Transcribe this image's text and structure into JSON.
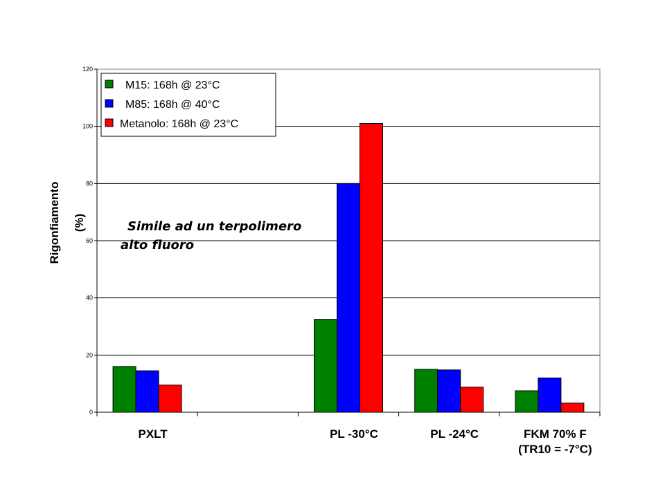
{
  "chart_data": {
    "type": "bar",
    "title": "",
    "ylabel": [
      "Rigonfiamento",
      "(%)"
    ],
    "xlabel": "",
    "ylim": [
      0,
      120
    ],
    "yticks": [
      0,
      20,
      40,
      60,
      80,
      100,
      120
    ],
    "grid": true,
    "legend_position": "top-left",
    "categories": [
      [
        "PXLT"
      ],
      [
        ""
      ],
      [
        "PL -30°C"
      ],
      [
        "PL -24°C"
      ],
      [
        "FKM 70% F",
        "(TR10 = -7°C)"
      ]
    ],
    "series": [
      {
        "name": "M15: 168h @ 23°C",
        "color": "#008000",
        "values": [
          16,
          null,
          32.5,
          15,
          7.5
        ]
      },
      {
        "name": "M85: 168h @ 40°C",
        "color": "#0000ff",
        "values": [
          14.5,
          null,
          80,
          14.8,
          12
        ]
      },
      {
        "name": "Metanolo: 168h @ 23°C",
        "color": "#ff0000",
        "values": [
          9.5,
          null,
          101,
          8.8,
          3.2
        ]
      }
    ],
    "annotation": [
      "Simile ad un terpolimero",
      "alto fluoro"
    ]
  }
}
